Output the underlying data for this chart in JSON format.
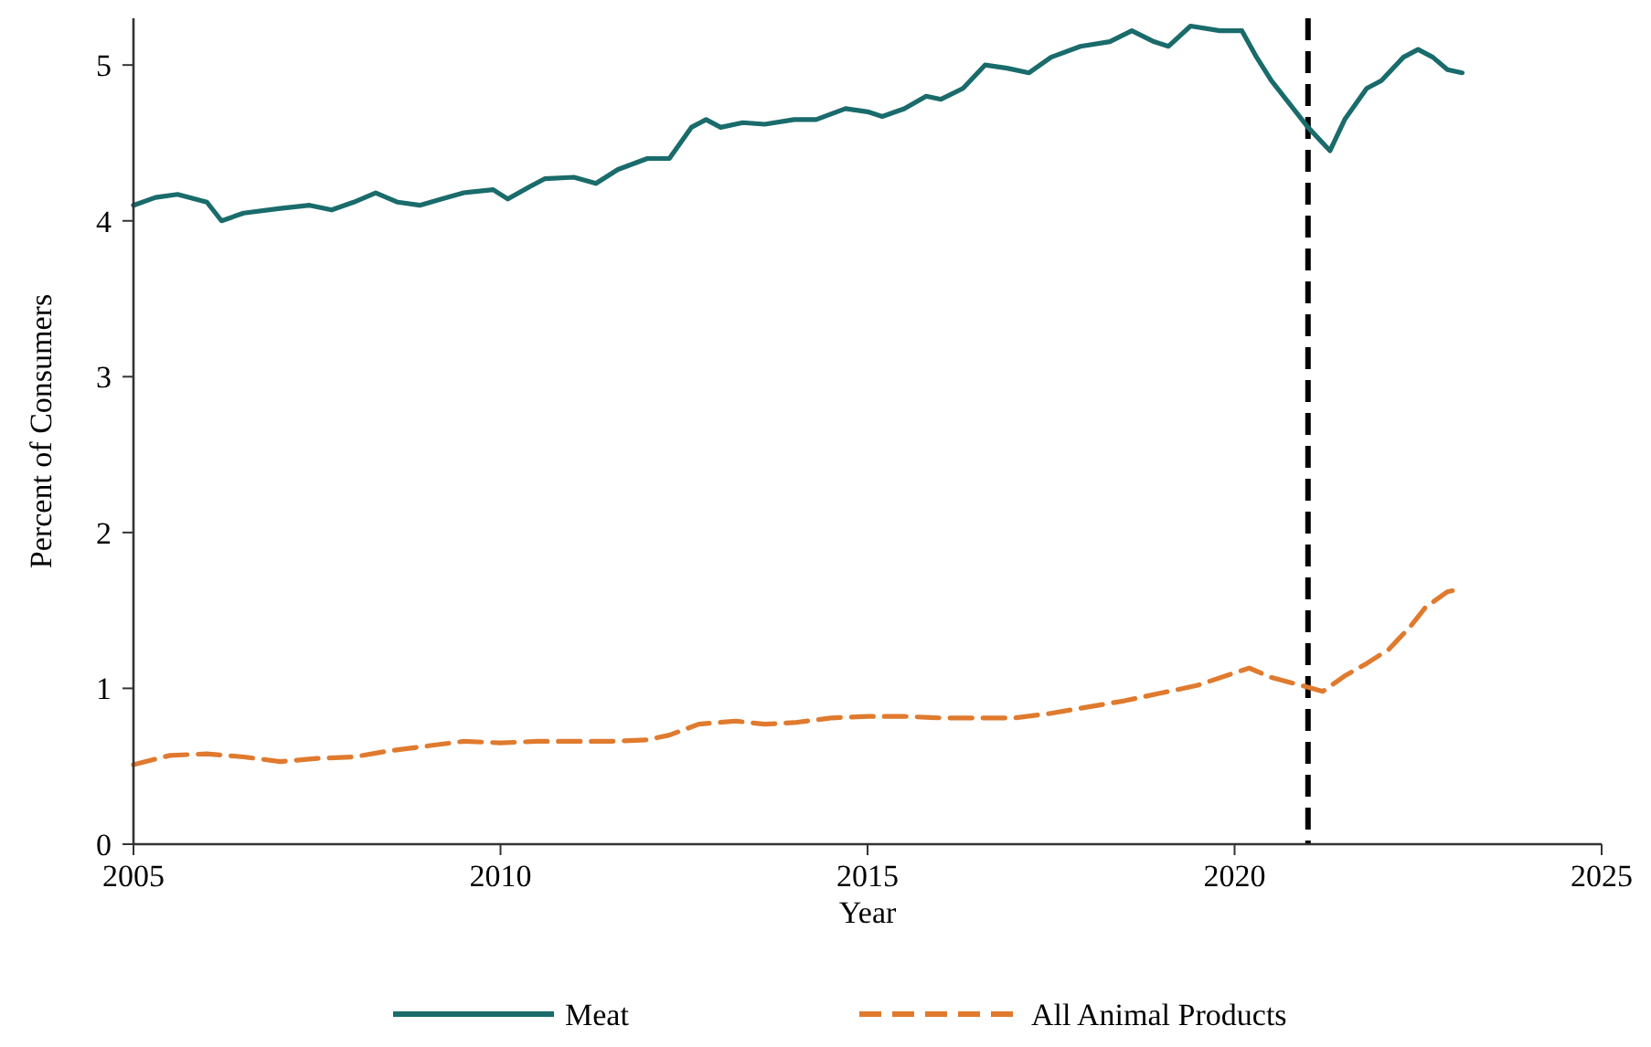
{
  "chart_data": {
    "type": "line",
    "xlabel": "Year",
    "ylabel": "Percent of Consumers",
    "xlim": [
      2005,
      2025
    ],
    "xticks": [
      2005,
      2010,
      2015,
      2020,
      2025
    ],
    "ylim": [
      0,
      5.3
    ],
    "yticks": [
      0,
      1,
      2,
      3,
      4,
      5
    ],
    "grid": false,
    "legend": "bottom",
    "series": [
      {
        "name": "Meat",
        "color": "#1a6b6b",
        "line_style": "solid",
        "x": [
          2005.0,
          2005.3,
          2005.6,
          2006.0,
          2006.2,
          2006.5,
          2007.0,
          2007.4,
          2007.7,
          2008.0,
          2008.3,
          2008.6,
          2008.9,
          2009.2,
          2009.5,
          2009.9,
          2010.1,
          2010.4,
          2010.6,
          2011.0,
          2011.3,
          2011.6,
          2012.0,
          2012.3,
          2012.6,
          2012.8,
          2013.0,
          2013.3,
          2013.6,
          2014.0,
          2014.3,
          2014.7,
          2015.0,
          2015.2,
          2015.5,
          2015.8,
          2016.0,
          2016.3,
          2016.6,
          2016.9,
          2017.2,
          2017.5,
          2017.9,
          2018.3,
          2018.6,
          2018.9,
          2019.1,
          2019.4,
          2019.8,
          2020.1,
          2020.3,
          2020.5,
          2020.8,
          2021.0,
          2021.3,
          2021.5,
          2021.8,
          2022.0,
          2022.3,
          2022.5,
          2022.7,
          2022.9,
          2023.1
        ],
        "values": [
          4.1,
          4.15,
          4.17,
          4.12,
          4.0,
          4.05,
          4.08,
          4.1,
          4.07,
          4.12,
          4.18,
          4.12,
          4.1,
          4.14,
          4.18,
          4.2,
          4.14,
          4.22,
          4.27,
          4.28,
          4.24,
          4.33,
          4.4,
          4.4,
          4.6,
          4.65,
          4.6,
          4.63,
          4.62,
          4.65,
          4.65,
          4.72,
          4.7,
          4.67,
          4.72,
          4.8,
          4.78,
          4.85,
          5.0,
          4.98,
          4.95,
          5.05,
          5.12,
          5.15,
          5.22,
          5.15,
          5.12,
          5.25,
          5.22,
          5.22,
          5.05,
          4.9,
          4.72,
          4.6,
          4.45,
          4.65,
          4.85,
          4.9,
          5.05,
          5.1,
          5.05,
          4.97,
          4.95
        ]
      },
      {
        "name": "All Animal Products",
        "color": "#e07a2e",
        "line_style": "dashed",
        "x": [
          2005.0,
          2005.5,
          2006.0,
          2006.5,
          2007.0,
          2007.5,
          2008.0,
          2008.5,
          2009.0,
          2009.5,
          2010.0,
          2010.5,
          2011.0,
          2011.5,
          2012.0,
          2012.3,
          2012.7,
          2013.2,
          2013.6,
          2014.0,
          2014.5,
          2015.0,
          2015.5,
          2016.0,
          2016.5,
          2017.0,
          2017.5,
          2018.0,
          2018.5,
          2019.0,
          2019.5,
          2020.0,
          2020.2,
          2020.5,
          2020.9,
          2021.2,
          2021.5,
          2021.8,
          2022.1,
          2022.4,
          2022.6,
          2022.9,
          2023.0
        ],
        "values": [
          0.51,
          0.57,
          0.58,
          0.56,
          0.53,
          0.55,
          0.56,
          0.6,
          0.63,
          0.66,
          0.65,
          0.66,
          0.66,
          0.66,
          0.67,
          0.7,
          0.77,
          0.79,
          0.77,
          0.78,
          0.81,
          0.82,
          0.82,
          0.81,
          0.81,
          0.81,
          0.84,
          0.88,
          0.92,
          0.97,
          1.02,
          1.1,
          1.13,
          1.07,
          1.02,
          0.98,
          1.08,
          1.16,
          1.25,
          1.4,
          1.52,
          1.62,
          1.63
        ]
      }
    ],
    "ref_lines": [
      {
        "axis": "x",
        "value": 2021,
        "color": "#000000",
        "line_style": "dashed"
      }
    ]
  }
}
